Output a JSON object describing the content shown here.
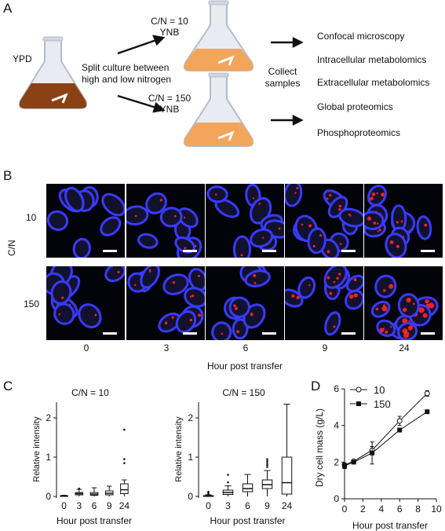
{
  "panel_a": {
    "letter": "A",
    "ypd_label": "YPD",
    "split_label_line1": "Split culture between",
    "split_label_line2": "high and low nitrogen",
    "top_flask_line1": "C/N = 10",
    "top_flask_line2": "YNB",
    "bottom_flask_line1": "C/N = 150",
    "bottom_flask_line2": "YNB",
    "collect_line1": "Collect",
    "collect_line2": "samples",
    "outputs": [
      "Confocal microscopy",
      "Intracellular metabolomics",
      "Extracellular metabolomics",
      "Global proteomics",
      "Phosphoproteomics"
    ],
    "colors": {
      "ypd_medium": "#8a4215",
      "ynb_medium": "#f2a55b",
      "flask_glass": "#e8ecf2"
    }
  },
  "panel_b": {
    "letter": "B",
    "y_axis_label": "C/N",
    "rows": [
      {
        "label": "10",
        "density": [
          0.15,
          0.3,
          0.35,
          0.6,
          1.0
        ]
      },
      {
        "label": "150",
        "density": [
          0.3,
          0.55,
          0.65,
          1.0,
          1.6
        ]
      }
    ],
    "timepoints": [
      "0",
      "3",
      "6",
      "9",
      "24"
    ],
    "x_axis_label": "Hour post transfer",
    "colors": {
      "cell_wall": "#3a3aff",
      "lipid_droplet": "#ff2020",
      "background": "#03030a"
    }
  },
  "chart_data": [
    {
      "type": "box",
      "title": "C/N = 10",
      "xlabel": "Hour post transfer",
      "ylabel": "Relative intensity",
      "categories": [
        "0",
        "3",
        "6",
        "9",
        "24"
      ],
      "ylim": [
        0,
        2.4
      ],
      "yticks": [
        "0",
        "1",
        "2"
      ],
      "boxes": [
        {
          "whisker_low": 0.0,
          "q1": 0.0,
          "median": 0.01,
          "q3": 0.02,
          "whisker_high": 0.03,
          "outliers": []
        },
        {
          "whisker_low": 0.0,
          "q1": 0.04,
          "median": 0.07,
          "q3": 0.1,
          "whisker_high": 0.18,
          "outliers": [
            0.2
          ]
        },
        {
          "whisker_low": 0.0,
          "q1": 0.03,
          "median": 0.06,
          "q3": 0.1,
          "whisker_high": 0.22,
          "outliers": []
        },
        {
          "whisker_low": 0.0,
          "q1": 0.04,
          "median": 0.08,
          "q3": 0.14,
          "whisker_high": 0.26,
          "outliers": []
        },
        {
          "whisker_low": 0.0,
          "q1": 0.07,
          "median": 0.17,
          "q3": 0.32,
          "whisker_high": 0.42,
          "outliers": [
            0.85,
            0.95,
            1.7
          ]
        }
      ]
    },
    {
      "type": "box",
      "title": "C/N = 150",
      "xlabel": "Hour post transfer",
      "ylabel": "Relative intensity",
      "categories": [
        "0",
        "3",
        "6",
        "9",
        "24"
      ],
      "ylim": [
        0,
        2.4
      ],
      "yticks": [
        "0",
        "1",
        "2"
      ],
      "boxes": [
        {
          "whisker_low": 0.0,
          "q1": 0.0,
          "median": 0.01,
          "q3": 0.02,
          "whisker_high": 0.04,
          "outliers": [
            0.06,
            0.09,
            0.12
          ]
        },
        {
          "whisker_low": 0.0,
          "q1": 0.05,
          "median": 0.1,
          "q3": 0.16,
          "whisker_high": 0.27,
          "outliers": [
            0.36,
            0.55
          ]
        },
        {
          "whisker_low": 0.0,
          "q1": 0.12,
          "median": 0.2,
          "q3": 0.32,
          "whisker_high": 0.56,
          "outliers": []
        },
        {
          "whisker_low": 0.0,
          "q1": 0.2,
          "median": 0.3,
          "q3": 0.42,
          "whisker_high": 0.66,
          "outliers": [
            0.75,
            0.8,
            0.85,
            0.9,
            0.95
          ]
        },
        {
          "whisker_low": 0.0,
          "q1": 0.06,
          "median": 0.35,
          "q3": 1.0,
          "whisker_high": 2.35,
          "outliers": []
        }
      ]
    },
    {
      "type": "line",
      "xlabel": "Hour post transfer",
      "ylabel": "Dry cell mass (g/L)",
      "xlim": [
        0,
        10
      ],
      "ylim": [
        0,
        6
      ],
      "xticks": [
        "0",
        "2",
        "4",
        "6",
        "8",
        "10"
      ],
      "yticks": [
        "0",
        "2",
        "4",
        "6"
      ],
      "legend": "top-left",
      "series": [
        {
          "name": "10",
          "marker": "open-circle",
          "x": [
            0,
            1,
            3,
            6,
            9
          ],
          "y": [
            1.85,
            2.05,
            2.65,
            4.25,
            5.75
          ],
          "err": [
            0.1,
            0.08,
            0.2,
            0.25,
            0.15
          ]
        },
        {
          "name": "150",
          "marker": "filled-square",
          "x": [
            0,
            1,
            3,
            6,
            9
          ],
          "y": [
            1.8,
            2.0,
            2.5,
            3.75,
            4.75
          ],
          "err": [
            0.15,
            0.08,
            0.6,
            0.1,
            0.05
          ]
        }
      ]
    }
  ]
}
